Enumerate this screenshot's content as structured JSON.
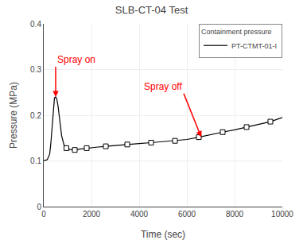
{
  "chart_data": {
    "type": "line",
    "title": "SLB-CT-04 Test",
    "xlabel": "Time (sec)",
    "ylabel": "Pressure (MPa)",
    "legend_title": "Containment pressure",
    "legend": "upper right",
    "grid": true,
    "xlim": [
      0,
      10000
    ],
    "ylim": [
      0.0,
      0.4
    ],
    "xticks": [
      0,
      2000,
      4000,
      6000,
      8000,
      10000
    ],
    "yticks": [
      0.0,
      0.1,
      0.2,
      0.3,
      0.4
    ],
    "series": [
      {
        "name": "PT-CTMT-01-I",
        "type": "line",
        "color": "black",
        "line_style": "solid",
        "x": [
          0,
          50,
          100,
          150,
          200,
          250,
          300,
          350,
          400,
          450,
          500,
          550,
          600,
          650,
          700,
          750,
          850,
          950,
          1100,
          1300,
          1500,
          1800,
          2200,
          2600,
          3000,
          3500,
          4000,
          4500,
          5000,
          5500,
          6000,
          6500,
          7000,
          7500,
          8000,
          8500,
          9000,
          9500,
          10000
        ],
        "values": [
          0.101,
          0.101,
          0.102,
          0.103,
          0.108,
          0.115,
          0.14,
          0.175,
          0.215,
          0.238,
          0.24,
          0.235,
          0.22,
          0.195,
          0.17,
          0.155,
          0.135,
          0.128,
          0.125,
          0.124,
          0.126,
          0.128,
          0.13,
          0.132,
          0.134,
          0.136,
          0.138,
          0.14,
          0.142,
          0.144,
          0.147,
          0.152,
          0.158,
          0.163,
          0.168,
          0.174,
          0.18,
          0.186,
          0.195
        ]
      },
      {
        "name": "PT-CTMT-01-I",
        "type": "scatter",
        "color": "black",
        "marker": "square",
        "x": [
          950,
          1300,
          1800,
          2600,
          3500,
          4500,
          5500,
          6500,
          7500,
          8500,
          9500
        ],
        "values": [
          0.128,
          0.124,
          0.128,
          0.132,
          0.136,
          0.14,
          0.144,
          0.152,
          0.163,
          0.174,
          0.186
        ]
      }
    ],
    "annotations": [
      {
        "text": "Spray on",
        "x": 500,
        "y": 0.24,
        "color": "red"
      },
      {
        "text": "Spray off",
        "x": 6600,
        "y": 0.152,
        "color": "red"
      }
    ]
  }
}
